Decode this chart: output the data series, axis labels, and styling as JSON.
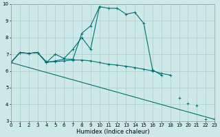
{
  "xlabel": "Humidex (Indice chaleur)",
  "xlim": [
    0,
    23
  ],
  "ylim": [
    3,
    10
  ],
  "yticks": [
    3,
    4,
    5,
    6,
    7,
    8,
    9,
    10
  ],
  "xticks": [
    0,
    1,
    2,
    3,
    4,
    5,
    6,
    7,
    8,
    9,
    10,
    11,
    12,
    13,
    14,
    15,
    16,
    17,
    18,
    19,
    20,
    21,
    22,
    23
  ],
  "bg_color": "#cce8e8",
  "grid_color": "#aacccc",
  "line_color": "#007070",
  "series1_x": [
    0,
    1,
    2,
    3,
    4,
    5,
    6,
    7,
    8,
    9,
    10,
    11,
    12,
    13,
    14,
    15,
    16,
    17,
    18
  ],
  "series1_y": [
    6.5,
    7.1,
    7.05,
    7.1,
    6.55,
    6.55,
    6.6,
    6.65,
    6.65,
    6.6,
    6.5,
    6.4,
    6.35,
    6.28,
    6.2,
    6.1,
    6.0,
    5.85,
    5.75
  ],
  "series2_x": [
    0,
    1,
    2,
    3,
    4,
    5,
    6,
    7,
    8,
    9,
    10,
    11,
    12,
    13,
    14,
    15,
    16,
    17
  ],
  "series2_y": [
    6.5,
    7.1,
    7.05,
    7.1,
    6.5,
    7.0,
    6.75,
    7.3,
    8.0,
    7.3,
    9.85,
    9.75,
    9.75,
    9.4,
    9.5,
    8.85,
    6.05,
    5.75
  ],
  "series3_x": [
    0,
    1,
    2,
    3,
    4,
    5,
    6,
    7,
    8,
    9,
    10
  ],
  "series3_y": [
    6.5,
    7.1,
    7.05,
    7.1,
    6.5,
    6.6,
    6.7,
    6.7,
    8.25,
    8.7,
    9.85
  ],
  "series4_x": [
    0,
    19,
    20,
    21,
    22,
    23
  ],
  "series4_y": [
    6.5,
    4.4,
    4.05,
    3.95,
    3.1,
    3.1
  ],
  "marker": "+",
  "markersize": 3,
  "linewidth": 0.8
}
